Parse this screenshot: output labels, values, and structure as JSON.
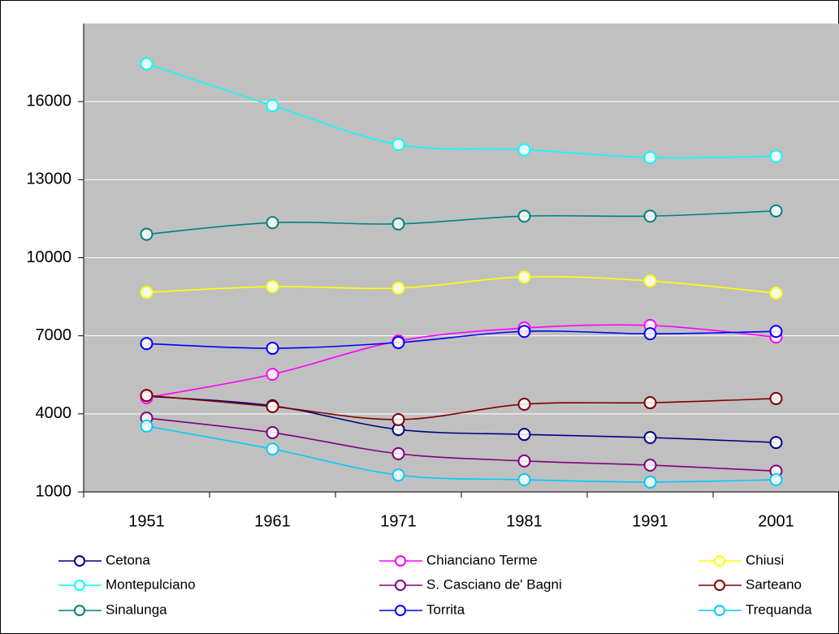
{
  "chart_data": {
    "type": "line",
    "categories": [
      "1951",
      "1961",
      "1971",
      "1981",
      "1991",
      "2001"
    ],
    "ylim": [
      1000,
      19000
    ],
    "yticks": [
      1000,
      4000,
      7000,
      10000,
      13000,
      16000
    ],
    "grid": true,
    "series": [
      {
        "name": "Cetona",
        "color": "#000080",
        "values": [
          4680,
          4310,
          3400,
          3210,
          3090,
          2900
        ]
      },
      {
        "name": "Chianciano Terme",
        "color": "#ff00ff",
        "values": [
          4620,
          5520,
          6800,
          7300,
          7400,
          6950
        ]
      },
      {
        "name": "Chiusi",
        "color": "#ffff00",
        "values": [
          8670,
          8890,
          8830,
          9260,
          9110,
          8640
        ]
      },
      {
        "name": "Montepulciano",
        "color": "#00ffff",
        "values": [
          17450,
          15850,
          14350,
          14150,
          13850,
          13900
        ]
      },
      {
        "name": "S. Casciano de' Bagni",
        "color": "#800080",
        "values": [
          3840,
          3280,
          2470,
          2190,
          2030,
          1800
        ]
      },
      {
        "name": "Sarteano",
        "color": "#800000",
        "values": [
          4710,
          4280,
          3780,
          4370,
          4430,
          4590
        ]
      },
      {
        "name": "Sinalunga",
        "color": "#008080",
        "values": [
          10900,
          11350,
          11300,
          11600,
          11600,
          11800
        ]
      },
      {
        "name": "Torrita",
        "color": "#0000ff",
        "values": [
          6700,
          6520,
          6740,
          7170,
          7080,
          7170
        ]
      },
      {
        "name": "Trequanda",
        "color": "#00ccff",
        "values": [
          3530,
          2650,
          1650,
          1470,
          1380,
          1470
        ]
      }
    ]
  }
}
